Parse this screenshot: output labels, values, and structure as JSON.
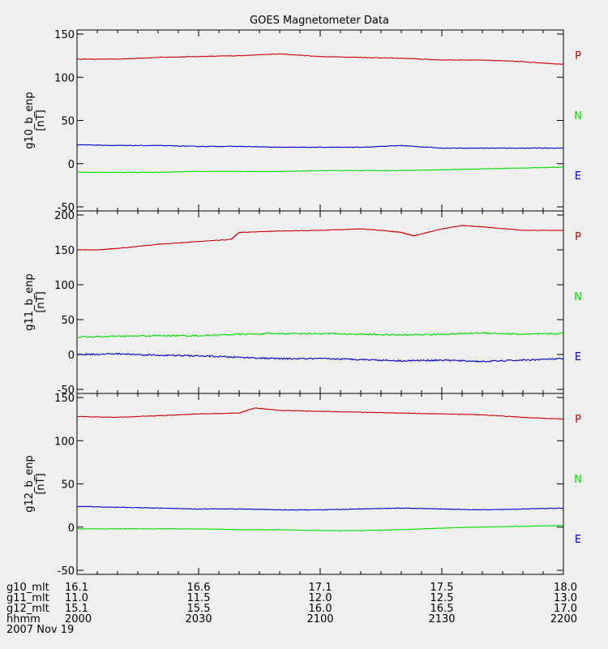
{
  "title": "GOES Magnetometer Data",
  "colors": {
    "background": "#efefef",
    "axis": "#000000",
    "P": "#cc0000",
    "N": "#00dd00",
    "E": "#0000cc"
  },
  "legend": [
    {
      "label": "P",
      "color": "#cc0000"
    },
    {
      "label": "N",
      "color": "#00dd00"
    },
    {
      "label": "E",
      "color": "#0000cc"
    }
  ],
  "chart_data": [
    {
      "type": "line",
      "ylabel": "g10_b_enp",
      "yunit": "[nT]",
      "ylim": [
        -50,
        150
      ],
      "yticks": [
        -50,
        0,
        50,
        100,
        150
      ],
      "xlim": [
        0,
        120
      ],
      "series": [
        {
          "name": "P",
          "x": [
            0,
            10,
            20,
            30,
            40,
            50,
            60,
            70,
            80,
            90,
            100,
            110,
            120
          ],
          "values": [
            121,
            121,
            123,
            124,
            125,
            127,
            124,
            123,
            122,
            120,
            120,
            118,
            115
          ]
        },
        {
          "name": "N",
          "x": [
            0,
            10,
            20,
            30,
            40,
            50,
            60,
            70,
            80,
            90,
            100,
            110,
            120
          ],
          "values": [
            -10,
            -10,
            -10,
            -9,
            -9,
            -9,
            -8,
            -8,
            -8,
            -7,
            -6,
            -5,
            -4
          ]
        },
        {
          "name": "E",
          "x": [
            0,
            10,
            20,
            30,
            40,
            50,
            60,
            70,
            80,
            90,
            100,
            110,
            120
          ],
          "values": [
            22,
            21,
            21,
            20,
            20,
            19,
            19,
            19,
            21,
            18,
            18,
            18,
            18
          ]
        }
      ]
    },
    {
      "type": "line",
      "ylabel": "g11_b_enp",
      "yunit": "[nT]",
      "ylim": [
        -50,
        200
      ],
      "yticks": [
        -50,
        0,
        50,
        100,
        150,
        200
      ],
      "xlim": [
        0,
        120
      ],
      "series": [
        {
          "name": "P",
          "x": [
            0,
            5,
            10,
            20,
            30,
            38,
            40,
            50,
            60,
            70,
            75,
            80,
            83,
            90,
            95,
            100,
            110,
            120
          ],
          "values": [
            150,
            150,
            152,
            158,
            162,
            165,
            175,
            177,
            178,
            180,
            178,
            175,
            170,
            180,
            185,
            183,
            178,
            178
          ]
        },
        {
          "name": "N",
          "x": [
            0,
            10,
            20,
            30,
            40,
            50,
            60,
            70,
            80,
            90,
            100,
            110,
            120
          ],
          "values": [
            25,
            26,
            27,
            27,
            29,
            30,
            30,
            29,
            28,
            29,
            31,
            29,
            30
          ]
        },
        {
          "name": "E",
          "x": [
            0,
            10,
            20,
            30,
            40,
            50,
            60,
            70,
            80,
            90,
            100,
            110,
            120
          ],
          "values": [
            0,
            1,
            -1,
            -2,
            -4,
            -6,
            -6,
            -7,
            -9,
            -8,
            -10,
            -8,
            -6
          ]
        }
      ]
    },
    {
      "type": "line",
      "ylabel": "g12_b_enp",
      "yunit": "[nT]",
      "ylim": [
        -50,
        150
      ],
      "yticks": [
        -50,
        0,
        50,
        100,
        150
      ],
      "xlim": [
        0,
        120
      ],
      "series": [
        {
          "name": "P",
          "x": [
            0,
            10,
            20,
            30,
            40,
            44,
            50,
            60,
            70,
            80,
            90,
            100,
            110,
            120
          ],
          "values": [
            128,
            127,
            129,
            131,
            132,
            138,
            135,
            134,
            133,
            132,
            131,
            130,
            127,
            125
          ]
        },
        {
          "name": "N",
          "x": [
            0,
            10,
            20,
            30,
            40,
            50,
            60,
            70,
            80,
            90,
            100,
            110,
            120
          ],
          "values": [
            -2,
            -2,
            -2,
            -2,
            -3,
            -3,
            -4,
            -4,
            -3,
            -1,
            0,
            1,
            2
          ]
        },
        {
          "name": "E",
          "x": [
            0,
            10,
            20,
            30,
            40,
            50,
            60,
            70,
            80,
            90,
            100,
            110,
            120
          ],
          "values": [
            24,
            23,
            22,
            21,
            21,
            20,
            20,
            21,
            22,
            21,
            20,
            21,
            22
          ]
        }
      ]
    }
  ],
  "xaxis": {
    "rows": [
      {
        "label": "g10_mlt",
        "values": [
          "16.1",
          "16.6",
          "17.1",
          "17.5",
          "18.0"
        ]
      },
      {
        "label": "g11_mlt",
        "values": [
          "11.0",
          "11.5",
          "12.0",
          "12.5",
          "13.0"
        ]
      },
      {
        "label": "g12_mlt",
        "values": [
          "15.1",
          "15.5",
          "16.0",
          "16.5",
          "17.0"
        ]
      },
      {
        "label": "hhmm",
        "values": [
          "2000",
          "2030",
          "2100",
          "2130",
          "2200"
        ]
      }
    ],
    "date": "2007 Nov 19"
  }
}
